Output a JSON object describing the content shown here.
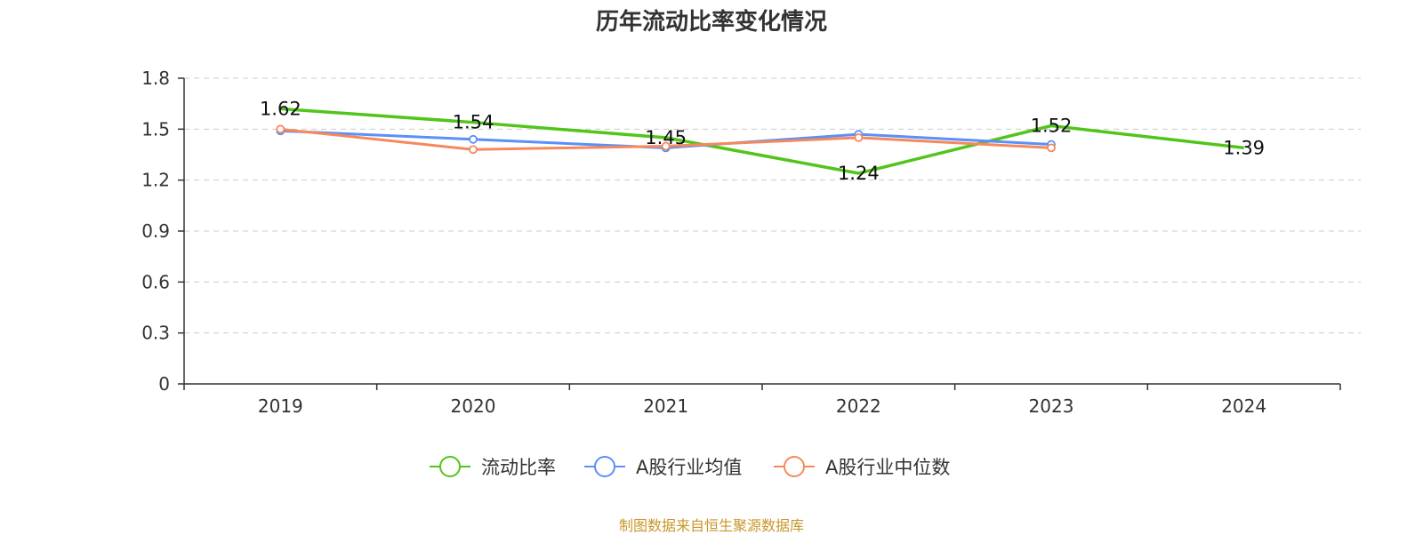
{
  "chart_data": {
    "type": "line",
    "title": "历年流动比率变化情况",
    "categories": [
      "2019",
      "2020",
      "2021",
      "2022",
      "2023",
      "2024"
    ],
    "ylim": [
      0,
      1.8
    ],
    "yticks": [
      0,
      0.3,
      0.6,
      0.9,
      1.2,
      1.5,
      1.8
    ],
    "ytick_labels": [
      "0",
      "0.3",
      "0.6",
      "0.9",
      "1.2",
      "1.5",
      "1.8"
    ],
    "grid": true,
    "legend_position": "bottom",
    "series": [
      {
        "name": "流动比率",
        "color": "#52c41a",
        "values": [
          1.62,
          1.54,
          1.45,
          1.24,
          1.52,
          1.39
        ],
        "labels": [
          "1.62",
          "1.54",
          "1.45",
          "1.24",
          "1.52",
          "1.39"
        ],
        "show_markers": false
      },
      {
        "name": "A股行业均值",
        "color": "#5b8ff9",
        "values": [
          1.49,
          1.44,
          1.39,
          1.47,
          1.41,
          null
        ],
        "show_markers": true
      },
      {
        "name": "A股行业中位数",
        "color": "#f6895c",
        "values": [
          1.5,
          1.38,
          1.4,
          1.45,
          1.39,
          null
        ],
        "show_markers": true
      }
    ]
  },
  "source_note": "制图数据来自恒生聚源数据库"
}
